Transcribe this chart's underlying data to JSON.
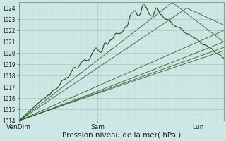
{
  "xlabel": "Pression niveau de la mer( hPa )",
  "bg_color": "#cde8e4",
  "grid_major_color": "#a0bfbf",
  "grid_minor_color": "#b8d8d4",
  "line_color": "#2a5c2a",
  "ylim": [
    1014,
    1024.5
  ],
  "yticks": [
    1014,
    1015,
    1016,
    1017,
    1018,
    1019,
    1020,
    1021,
    1022,
    1023,
    1024
  ],
  "xtick_labels": [
    "VenDim",
    "Sam",
    "Lun"
  ],
  "xtick_pos": [
    0.0,
    0.385,
    0.875
  ],
  "xlabel_fontsize": 7.5,
  "ytick_fontsize": 5.5,
  "xtick_fontsize": 6.5
}
